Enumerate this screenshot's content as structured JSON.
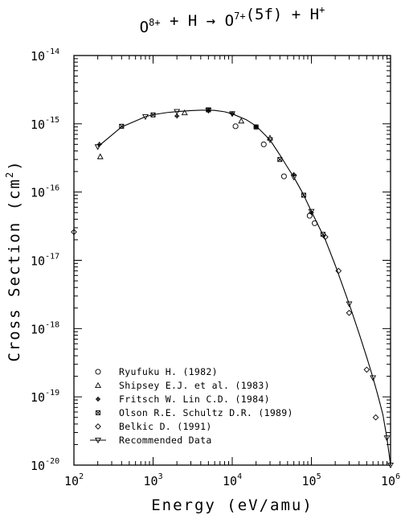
{
  "chart_data": {
    "type": "scatter",
    "title": {
      "parts": [
        {
          "t": "O",
          "sup": "8+"
        },
        {
          "t": " + H → "
        },
        {
          "t": "O",
          "sup": "7+"
        },
        {
          "t": "(5f) + "
        },
        {
          "t": "H",
          "sup": "+"
        }
      ]
    },
    "xlabel": "Energy (eV/amu)",
    "ylabel": "Cross Section (cm",
    "ylabel_sup": "2",
    "ylabel_end": ")",
    "x_scale": "log",
    "y_scale": "log",
    "xlim": [
      100,
      1000000
    ],
    "ylim": [
      1e-20,
      1e-14
    ],
    "x_ticks": [
      {
        "base": "10",
        "exp": "2",
        "value": 100
      },
      {
        "base": "10",
        "exp": "3",
        "value": 1000
      },
      {
        "base": "10",
        "exp": "4",
        "value": 10000
      },
      {
        "base": "10",
        "exp": "5",
        "value": 100000
      },
      {
        "base": "10",
        "exp": "6",
        "value": 1000000
      }
    ],
    "y_ticks": [
      {
        "base": "10",
        "exp": "-14",
        "value": 1e-14
      },
      {
        "base": "10",
        "exp": "-15",
        "value": 1e-15
      },
      {
        "base": "10",
        "exp": "-16",
        "value": 1e-16
      },
      {
        "base": "10",
        "exp": "-17",
        "value": 1e-17
      },
      {
        "base": "10",
        "exp": "-18",
        "value": 1e-18
      },
      {
        "base": "10",
        "exp": "-19",
        "value": 1e-19
      },
      {
        "base": "10",
        "exp": "-20",
        "value": 1e-20
      }
    ],
    "legend_position": "bottom-left",
    "series": [
      {
        "name": "Ryufuku H. (1982)",
        "marker": "octagon",
        "points": [
          [
            11000,
            9.2e-16
          ],
          [
            25000,
            5e-16
          ],
          [
            45000,
            1.7e-16
          ],
          [
            95000,
            4.5e-17
          ],
          [
            110000,
            3.5e-17
          ]
        ]
      },
      {
        "name": "Shipsey E.J. et al. (1983)",
        "marker": "triangle",
        "points": [
          [
            215,
            3.3e-16
          ],
          [
            2500,
            1.45e-15
          ],
          [
            13000,
            1.1e-15
          ],
          [
            30000,
            6.2e-16
          ]
        ]
      },
      {
        "name": "Fritsch W. Lin C.D. (1984)",
        "marker": "cross",
        "points": [
          [
            210,
            5e-16
          ],
          [
            2000,
            1.3e-15
          ],
          [
            5000,
            1.55e-15
          ],
          [
            10000,
            1.4e-15
          ],
          [
            20000,
            9e-16
          ],
          [
            60000,
            1.8e-16
          ],
          [
            100000,
            5e-17
          ]
        ]
      },
      {
        "name": "Olson R.E. Schultz D.R. (1989)",
        "marker": "xbox",
        "points": [
          [
            400,
            9.2e-16
          ],
          [
            1000,
            1.35e-15
          ],
          [
            5000,
            1.6e-15
          ],
          [
            20000,
            9e-16
          ],
          [
            40000,
            3e-16
          ],
          [
            80000,
            9e-17
          ],
          [
            140000,
            2.4e-17
          ]
        ]
      },
      {
        "name": "Belkic D. (1991)",
        "marker": "diamond",
        "points": [
          [
            100,
            2.6e-17
          ],
          [
            150000,
            2.2e-17
          ],
          [
            220000,
            7e-18
          ],
          [
            300000,
            1.7e-18
          ],
          [
            500000,
            2.5e-19
          ],
          [
            650000,
            5e-20
          ]
        ]
      },
      {
        "name": "Recommended Data",
        "marker": "down-triangle",
        "line": true,
        "points": [
          [
            200,
            4.6e-16
          ],
          [
            400,
            9e-16
          ],
          [
            600,
            1.1e-15
          ],
          [
            800,
            1.27e-15
          ],
          [
            1000,
            1.36e-15
          ],
          [
            1500,
            1.46e-15
          ],
          [
            2000,
            1.51e-15
          ],
          [
            3000,
            1.56e-15
          ],
          [
            4000,
            1.58e-15
          ],
          [
            5000,
            1.58e-15
          ],
          [
            6000,
            1.57e-15
          ],
          [
            8000,
            1.5e-15
          ],
          [
            10000,
            1.4e-15
          ],
          [
            15000,
            1.15e-15
          ],
          [
            20000,
            9.3e-16
          ],
          [
            30000,
            5.8e-16
          ],
          [
            40000,
            3.5e-16
          ],
          [
            50000,
            2.3e-16
          ],
          [
            60000,
            1.65e-16
          ],
          [
            70000,
            1.2e-16
          ],
          [
            80000,
            9e-17
          ],
          [
            100000,
            5.2e-17
          ],
          [
            150000,
            2e-17
          ],
          [
            200000,
            8.5e-18
          ],
          [
            300000,
            2.3e-18
          ],
          [
            400000,
            8.5e-19
          ],
          [
            500000,
            3.8e-19
          ],
          [
            600000,
            1.9e-19
          ],
          [
            700000,
            1e-19
          ],
          [
            800000,
            5.5e-20
          ],
          [
            900000,
            2.5e-20
          ],
          [
            1000000,
            1e-20
          ]
        ]
      }
    ]
  }
}
